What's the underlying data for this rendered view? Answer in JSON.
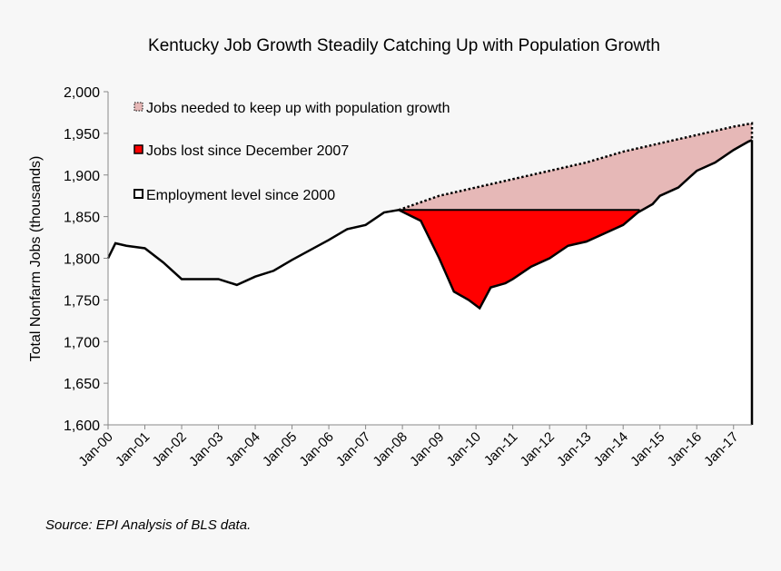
{
  "chart_data": {
    "type": "area",
    "title": "Kentucky Job Growth Steadily Catching Up with Population Growth",
    "ylabel": "Total Nonfarm Jobs (thousands)",
    "xlabel": "",
    "ylim": [
      1600,
      2000
    ],
    "yticks": [
      1600,
      1650,
      1700,
      1750,
      1800,
      1850,
      1900,
      1950,
      2000
    ],
    "ytick_labels": [
      "1,600",
      "1,650",
      "1,700",
      "1,750",
      "1,800",
      "1,850",
      "1,900",
      "1,950",
      "2,000"
    ],
    "xlim": [
      2000,
      2017.5
    ],
    "xticks": [
      2000,
      2001,
      2002,
      2003,
      2004,
      2005,
      2006,
      2007,
      2008,
      2009,
      2010,
      2011,
      2012,
      2013,
      2014,
      2015,
      2016,
      2017
    ],
    "xtick_labels": [
      "Jan-00",
      "Jan-01",
      "Jan-02",
      "Jan-03",
      "Jan-04",
      "Jan-05",
      "Jan-06",
      "Jan-07",
      "Jan-08",
      "Jan-09",
      "Jan-10",
      "Jan-11",
      "Jan-12",
      "Jan-13",
      "Jan-14",
      "Jan-15",
      "Jan-16",
      "Jan-17"
    ],
    "legend": [
      "Jobs needed to keep up with population growth",
      "Jobs lost since December 2007",
      "Employment level since 2000"
    ],
    "legend_position": "top-left",
    "colors": {
      "population": "#e6b8b7",
      "lost": "#ff0000",
      "employment": "#ffffff"
    },
    "dec2007_level": 1858,
    "employment": {
      "x": [
        2000,
        2000.2,
        2000.5,
        2001,
        2001.5,
        2002,
        2002.5,
        2003,
        2003.5,
        2004,
        2004.5,
        2005,
        2005.5,
        2006,
        2006.5,
        2007,
        2007.5,
        2007.9,
        2008.5,
        2009,
        2009.4,
        2009.8,
        2010.1,
        2010.4,
        2010.8,
        2011,
        2011.5,
        2012,
        2012.5,
        2013,
        2013.5,
        2014,
        2014.4,
        2014.8,
        2015,
        2015.5,
        2016,
        2016.5,
        2017,
        2017.4,
        2017.5
      ],
      "y": [
        1800,
        1818,
        1815,
        1812,
        1795,
        1775,
        1775,
        1775,
        1768,
        1778,
        1785,
        1798,
        1810,
        1822,
        1835,
        1840,
        1855,
        1858,
        1845,
        1800,
        1760,
        1750,
        1740,
        1765,
        1770,
        1775,
        1790,
        1800,
        1815,
        1820,
        1830,
        1840,
        1855,
        1865,
        1875,
        1885,
        1905,
        1915,
        1930,
        1940,
        1942
      ]
    },
    "population": {
      "x": [
        2007.9,
        2009,
        2010,
        2011,
        2012,
        2013,
        2014,
        2015,
        2016,
        2017,
        2017.5
      ],
      "y": [
        1858,
        1875,
        1885,
        1895,
        1905,
        1915,
        1928,
        1938,
        1948,
        1958,
        1962
      ]
    },
    "source": "Source: EPI Analysis of BLS data."
  }
}
